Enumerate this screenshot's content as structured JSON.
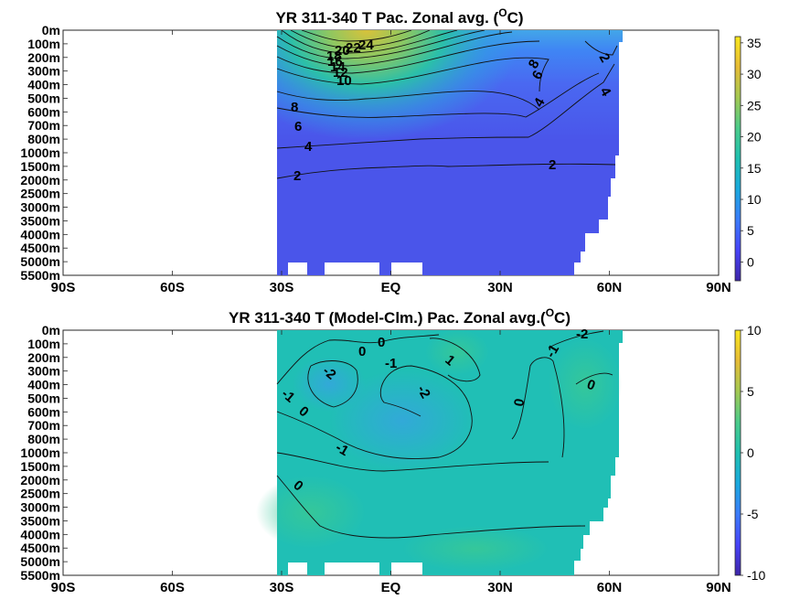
{
  "chart_data": [
    {
      "type": "heatmap",
      "title": "YR 311-340 T Pac. Zonal avg. (",
      "title_sup": "O",
      "title_end": "C)",
      "x_ticks": [
        "90S",
        "60S",
        "30S",
        "EQ",
        "30N",
        "60N",
        "90N"
      ],
      "x_tick_values": [
        -90,
        -60,
        -30,
        0,
        30,
        60,
        90
      ],
      "y_ticks": [
        "0m",
        "100m",
        "200m",
        "300m",
        "400m",
        "500m",
        "600m",
        "700m",
        "800m",
        "1000m",
        "1500m",
        "2000m",
        "2500m",
        "3000m",
        "3500m",
        "4000m",
        "4500m",
        "5000m",
        "5500m"
      ],
      "colorbar_ticks": [
        "35",
        "30",
        "25",
        "20",
        "15",
        "10",
        "5",
        "0"
      ],
      "colorbar_range": [
        -3,
        36
      ],
      "contour_labels": [
        "24",
        "22",
        "20",
        "18",
        "16",
        "14",
        "12",
        "10",
        "8",
        "6",
        "4",
        "2",
        "2",
        "2",
        "4",
        "4",
        "6",
        "8"
      ],
      "colormap": [
        "#3e26a8",
        "#4743f8",
        "#3b7cfa",
        "#1aa9de",
        "#1fc0b0",
        "#4bcb8a",
        "#a3c852",
        "#e6bb36",
        "#f9e71e"
      ]
    },
    {
      "type": "heatmap",
      "title": "YR 311-340 T (Model-Clm.) Pac. Zonal avg.(",
      "title_sup": "O",
      "title_end": "C)",
      "x_ticks": [
        "90S",
        "60S",
        "30S",
        "EQ",
        "30N",
        "60N",
        "90N"
      ],
      "x_tick_values": [
        -90,
        -60,
        -30,
        0,
        30,
        60,
        90
      ],
      "y_ticks": [
        "0m",
        "100m",
        "200m",
        "300m",
        "400m",
        "500m",
        "600m",
        "700m",
        "800m",
        "1000m",
        "1500m",
        "2000m",
        "2500m",
        "3000m",
        "3500m",
        "4000m",
        "4500m",
        "5000m",
        "5500m"
      ],
      "colorbar_ticks": [
        "10",
        "5",
        "0",
        "-5",
        "-10"
      ],
      "colorbar_range": [
        -10,
        10
      ],
      "contour_labels": [
        "0",
        "0",
        "-1",
        "-2",
        "-2",
        "1",
        "-1",
        "0",
        "0",
        "-1",
        "0",
        "-2",
        "-1",
        "0"
      ],
      "colormap": [
        "#3e26a8",
        "#4743f8",
        "#3b7cfa",
        "#1aa9de",
        "#1fc0b0",
        "#4bcb8a",
        "#a3c852",
        "#e6bb36",
        "#f9e71e"
      ]
    }
  ]
}
